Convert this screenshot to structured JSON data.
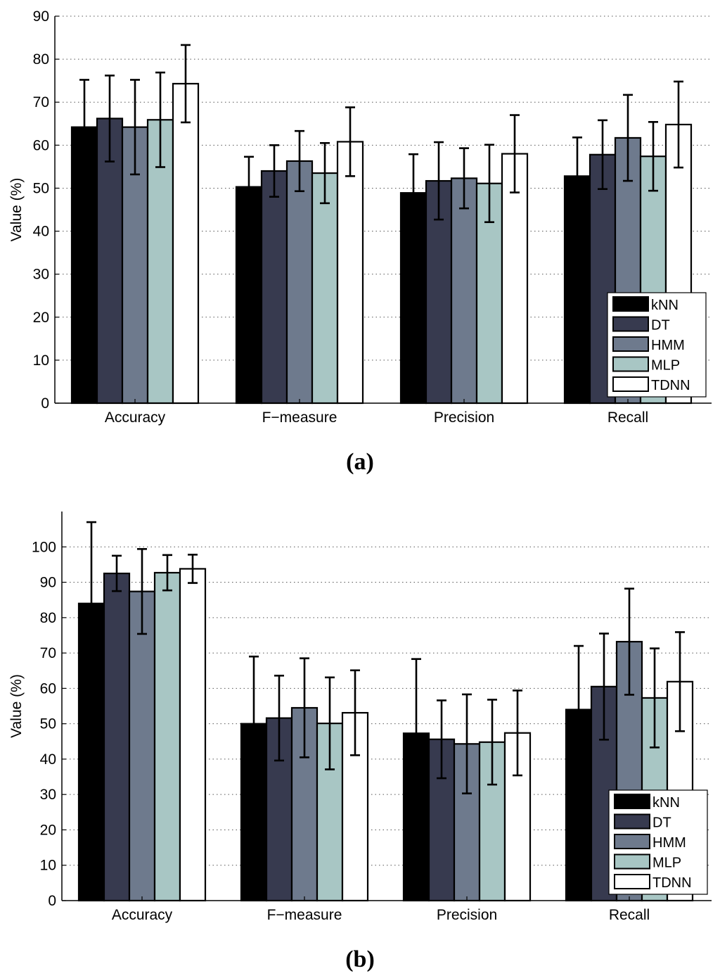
{
  "chart_data": [
    {
      "type": "bar",
      "panel_label": "(a)",
      "panel_letter": "a",
      "categories": [
        "Accuracy",
        "F−measure",
        "Precision",
        "Recall"
      ],
      "ylabel": "Value (%)",
      "xlabel": "",
      "ylim": [
        0,
        90
      ],
      "yticks": [
        0,
        10,
        20,
        30,
        40,
        50,
        60,
        70,
        80,
        90
      ],
      "grid": "horizontal dotted",
      "legend_position": "bottom-right",
      "series": [
        {
          "name": "kNN",
          "color": "#000000",
          "values": [
            64.2,
            50.3,
            48.9,
            52.8
          ],
          "errors": [
            11.0,
            7.0,
            9.0,
            9.0
          ]
        },
        {
          "name": "DT",
          "color": "#373a4f",
          "values": [
            66.2,
            54.0,
            51.7,
            57.8
          ],
          "errors": [
            10.0,
            6.0,
            9.0,
            8.0
          ]
        },
        {
          "name": "HMM",
          "color": "#6e7a8d",
          "values": [
            64.2,
            56.3,
            52.3,
            61.7
          ],
          "errors": [
            11.0,
            7.0,
            7.0,
            10.0
          ]
        },
        {
          "name": "MLP",
          "color": "#a8c6c4",
          "values": [
            65.9,
            53.5,
            51.1,
            57.4
          ],
          "errors": [
            11.0,
            7.0,
            9.0,
            8.0
          ]
        },
        {
          "name": "TDNN",
          "color": "#ffffff",
          "values": [
            74.3,
            60.8,
            58.0,
            64.8
          ],
          "errors": [
            9.0,
            8.0,
            9.0,
            10.0
          ]
        }
      ]
    },
    {
      "type": "bar",
      "panel_label": "(b)",
      "panel_letter": "b",
      "categories": [
        "Accuracy",
        "F−measure",
        "Precision",
        "Recall"
      ],
      "ylabel": "Value (%)",
      "xlabel": "",
      "ylim": [
        0,
        110
      ],
      "yticks": [
        0,
        10,
        20,
        30,
        40,
        50,
        60,
        70,
        80,
        90,
        100
      ],
      "grid": "horizontal dotted",
      "legend_position": "bottom-right",
      "series": [
        {
          "name": "kNN",
          "color": "#000000",
          "values": [
            84.0,
            50.0,
            47.3,
            54.0
          ],
          "errors": [
            23.0,
            19.0,
            21.0,
            18.0
          ]
        },
        {
          "name": "DT",
          "color": "#373a4f",
          "values": [
            92.5,
            51.6,
            45.6,
            60.5
          ],
          "errors": [
            5.0,
            12.0,
            11.0,
            15.0
          ]
        },
        {
          "name": "HMM",
          "color": "#6e7a8d",
          "values": [
            87.4,
            54.5,
            44.3,
            73.2
          ],
          "errors": [
            12.0,
            14.0,
            14.0,
            15.0
          ]
        },
        {
          "name": "MLP",
          "color": "#a8c6c4",
          "values": [
            92.7,
            50.1,
            44.8,
            57.3
          ],
          "errors": [
            5.0,
            13.0,
            12.0,
            14.0
          ]
        },
        {
          "name": "TDNN",
          "color": "#ffffff",
          "values": [
            93.8,
            53.1,
            47.4,
            61.9
          ],
          "errors": [
            4.0,
            12.0,
            12.0,
            14.0
          ]
        }
      ]
    }
  ]
}
